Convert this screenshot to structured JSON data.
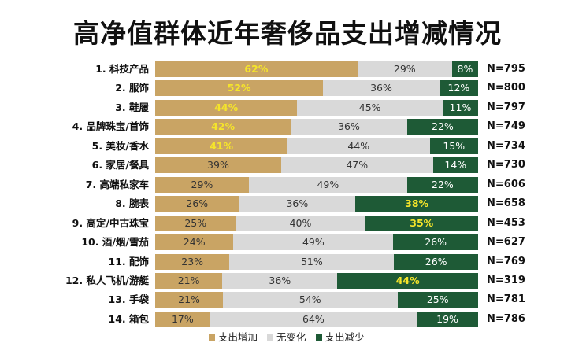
{
  "chart_data": {
    "type": "bar",
    "stacked": true,
    "orientation": "horizontal",
    "title": "高净值群体近年奢侈品支出增减情况",
    "categories": [
      "1. 科技产品",
      "2. 服饰",
      "3. 鞋履",
      "4. 品牌珠宝/首饰",
      "5. 美妆/香水",
      "6. 家居/餐具",
      "7. 高端私家车",
      "8. 腕表",
      "9. 高定/中古珠宝",
      "10. 酒/烟/雪茄",
      "11. 配饰",
      "12. 私人飞机/游艇",
      "13. 手袋",
      "14. 箱包"
    ],
    "n_labels": [
      "N=795",
      "N=800",
      "N=797",
      "N=749",
      "N=734",
      "N=730",
      "N=606",
      "N=658",
      "N=453",
      "N=627",
      "N=769",
      "N=319",
      "N=781",
      "N=786"
    ],
    "series": [
      {
        "name": "支出增加",
        "color": "#c9a464",
        "values": [
          62,
          52,
          44,
          42,
          41,
          39,
          29,
          26,
          25,
          24,
          23,
          21,
          21,
          17
        ]
      },
      {
        "name": "无变化",
        "color": "#d9d9d9",
        "values": [
          29,
          36,
          45,
          36,
          44,
          47,
          49,
          36,
          40,
          49,
          51,
          36,
          54,
          64
        ]
      },
      {
        "name": "支出减少",
        "color": "#1e5a36",
        "values": [
          8,
          12,
          11,
          22,
          15,
          14,
          22,
          38,
          35,
          26,
          26,
          44,
          25,
          19
        ]
      }
    ],
    "highlight_increase_rows": [
      0,
      1,
      2,
      3,
      4
    ],
    "highlight_decrease_rows": [
      7,
      8,
      11
    ],
    "highlight_color": "#f5e52a",
    "legend": "bottom"
  }
}
